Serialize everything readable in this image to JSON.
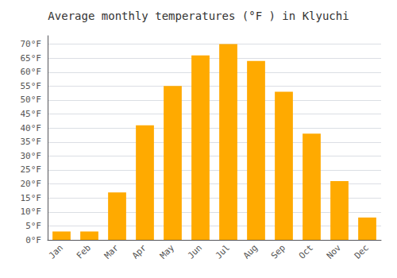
{
  "chart_data": {
    "type": "bar",
    "title": "Average monthly temperatures (°F ) in Klyuchi",
    "categories": [
      "Jan",
      "Feb",
      "Mar",
      "Apr",
      "May",
      "Jun",
      "Jul",
      "Aug",
      "Sep",
      "Oct",
      "Nov",
      "Dec"
    ],
    "values": [
      3,
      3,
      17,
      41,
      55,
      66,
      70,
      64,
      53,
      38,
      21,
      8
    ],
    "color": "#FFAA00",
    "ylim": [
      0,
      73
    ],
    "yticks": [
      {
        "value": 0,
        "label": "0°F"
      },
      {
        "value": 5,
        "label": "5°F"
      },
      {
        "value": 10,
        "label": "10°F"
      },
      {
        "value": 15,
        "label": "15°F"
      },
      {
        "value": 20,
        "label": "20°F"
      },
      {
        "value": 25,
        "label": "25°F"
      },
      {
        "value": 30,
        "label": "30°F"
      },
      {
        "value": 35,
        "label": "35°F"
      },
      {
        "value": 40,
        "label": "40°F"
      },
      {
        "value": 45,
        "label": "45°F"
      },
      {
        "value": 50,
        "label": "50°F"
      },
      {
        "value": 55,
        "label": "55°F"
      },
      {
        "value": 60,
        "label": "60°F"
      },
      {
        "value": 65,
        "label": "65°F"
      },
      {
        "value": 70,
        "label": "70°F"
      }
    ],
    "grid": true
  }
}
